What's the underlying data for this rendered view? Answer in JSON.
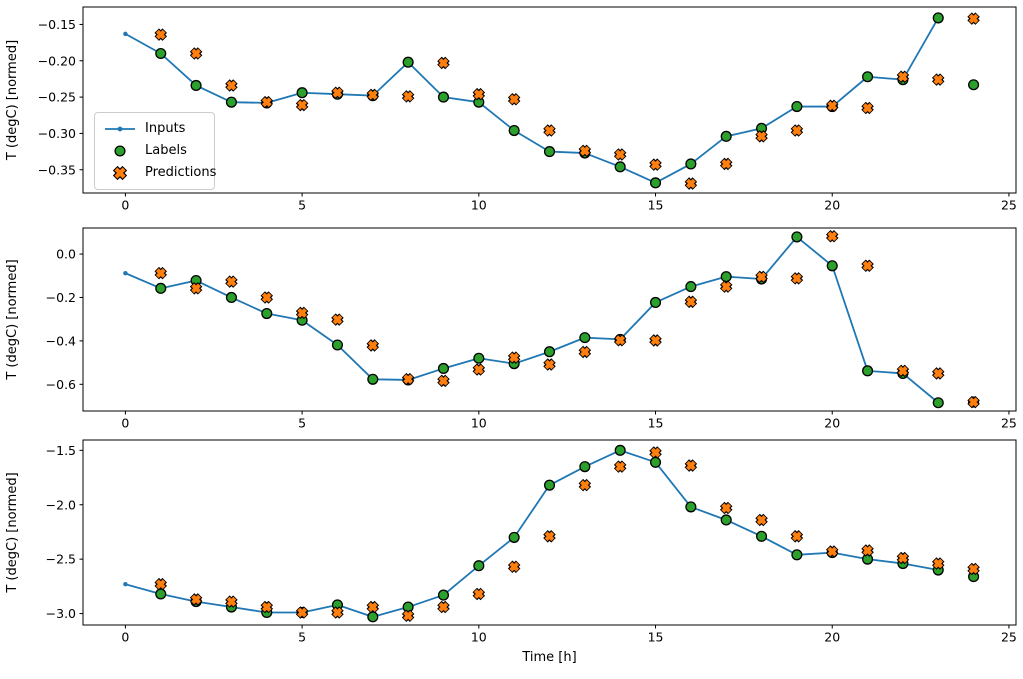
{
  "figure": {
    "background": "#ffffff",
    "xlabel": "Time [h]",
    "ylabel": "T (degC) [normed]"
  },
  "legend": {
    "items": [
      {
        "label": "Inputs",
        "marker": "line-dot",
        "color": "#1f77b4",
        "edge": "#1f77b4"
      },
      {
        "label": "Labels",
        "marker": "circle",
        "color": "#2ca02c",
        "edge": "#000000"
      },
      {
        "label": "Predictions",
        "marker": "X",
        "color": "#ff7f0e",
        "edge": "#000000"
      }
    ]
  },
  "chart_data": [
    {
      "type": "line",
      "title": "",
      "xlabel": "",
      "ylabel": "T (degC) [normed]",
      "xlim": [
        -1.2,
        25.2
      ],
      "ylim": [
        -0.382,
        -0.126
      ],
      "xticks": [
        0,
        5,
        10,
        15,
        20,
        25
      ],
      "xtick_labels": [
        "0",
        "5",
        "10",
        "15",
        "20",
        "25"
      ],
      "show_xtick_labels": true,
      "yticks": [
        -0.15,
        -0.2,
        -0.25,
        -0.3,
        -0.35
      ],
      "ytick_labels": [
        "−0.15",
        "−0.20",
        "−0.25",
        "−0.30",
        "−0.35"
      ],
      "legend_position": "center left",
      "series": [
        {
          "name": "Inputs",
          "kind": "line",
          "marker": "dot",
          "color": "#1f77b4",
          "edge": "#1f77b4",
          "x": [
            0,
            1,
            2,
            3,
            4,
            5,
            6,
            7,
            8,
            9,
            10,
            11,
            12,
            13,
            14,
            15,
            16,
            17,
            18,
            19,
            20,
            21,
            22,
            23
          ],
          "y": [
            -0.163,
            -0.19,
            -0.234,
            -0.257,
            -0.258,
            -0.244,
            -0.246,
            -0.248,
            -0.202,
            -0.25,
            -0.257,
            -0.296,
            -0.325,
            -0.327,
            -0.346,
            -0.368,
            -0.342,
            -0.304,
            -0.293,
            -0.263,
            -0.263,
            -0.222,
            -0.226,
            -0.141
          ]
        },
        {
          "name": "Labels",
          "kind": "scatter",
          "marker": "circle",
          "color": "#2ca02c",
          "edge": "#000000",
          "x": [
            1,
            2,
            3,
            4,
            5,
            6,
            7,
            8,
            9,
            10,
            11,
            12,
            13,
            14,
            15,
            16,
            17,
            18,
            19,
            20,
            21,
            22,
            23,
            24
          ],
          "y": [
            -0.19,
            -0.234,
            -0.257,
            -0.258,
            -0.244,
            -0.246,
            -0.248,
            -0.202,
            -0.25,
            -0.257,
            -0.296,
            -0.325,
            -0.327,
            -0.346,
            -0.368,
            -0.342,
            -0.304,
            -0.293,
            -0.263,
            -0.263,
            -0.222,
            -0.226,
            -0.141,
            -0.233
          ]
        },
        {
          "name": "Predictions",
          "kind": "scatter",
          "marker": "X",
          "color": "#ff7f0e",
          "edge": "#000000",
          "x": [
            1,
            2,
            3,
            4,
            5,
            6,
            7,
            8,
            9,
            10,
            11,
            12,
            13,
            14,
            15,
            16,
            17,
            18,
            19,
            20,
            21,
            22,
            23,
            24
          ],
          "y": [
            -0.164,
            -0.19,
            -0.234,
            -0.257,
            -0.261,
            -0.244,
            -0.247,
            -0.249,
            -0.203,
            -0.246,
            -0.253,
            -0.296,
            -0.324,
            -0.329,
            -0.343,
            -0.369,
            -0.342,
            -0.304,
            -0.296,
            -0.262,
            -0.265,
            -0.222,
            -0.226,
            -0.142
          ]
        }
      ]
    },
    {
      "type": "line",
      "title": "",
      "xlabel": "",
      "ylabel": "T (degC) [normed]",
      "xlim": [
        -1.2,
        25.2
      ],
      "ylim": [
        -0.723,
        0.12
      ],
      "xticks": [
        0,
        5,
        10,
        15,
        20,
        25
      ],
      "xtick_labels": [
        "0",
        "5",
        "10",
        "15",
        "20",
        "25"
      ],
      "show_xtick_labels": true,
      "yticks": [
        0.0,
        -0.2,
        -0.4,
        -0.6
      ],
      "ytick_labels": [
        "0.0",
        "−0.2",
        "−0.4",
        "−0.6"
      ],
      "legend_position": "none",
      "series": [
        {
          "name": "Inputs",
          "kind": "line",
          "marker": "dot",
          "color": "#1f77b4",
          "edge": "#1f77b4",
          "x": [
            0,
            1,
            2,
            3,
            4,
            5,
            6,
            7,
            8,
            9,
            10,
            11,
            12,
            13,
            14,
            15,
            16,
            17,
            18,
            19,
            20,
            21,
            22,
            23
          ],
          "y": [
            -0.088,
            -0.158,
            -0.122,
            -0.2,
            -0.274,
            -0.305,
            -0.419,
            -0.577,
            -0.58,
            -0.527,
            -0.48,
            -0.505,
            -0.45,
            -0.385,
            -0.393,
            -0.223,
            -0.15,
            -0.104,
            -0.115,
            0.079,
            -0.054,
            -0.538,
            -0.55,
            -0.685
          ]
        },
        {
          "name": "Labels",
          "kind": "scatter",
          "marker": "circle",
          "color": "#2ca02c",
          "edge": "#000000",
          "x": [
            1,
            2,
            3,
            4,
            5,
            6,
            7,
            8,
            9,
            10,
            11,
            12,
            13,
            14,
            15,
            16,
            17,
            18,
            19,
            20,
            21,
            22,
            23,
            24
          ],
          "y": [
            -0.158,
            -0.122,
            -0.2,
            -0.274,
            -0.305,
            -0.419,
            -0.577,
            -0.58,
            -0.527,
            -0.48,
            -0.505,
            -0.45,
            -0.385,
            -0.393,
            -0.223,
            -0.15,
            -0.104,
            -0.115,
            0.079,
            -0.054,
            -0.538,
            -0.55,
            -0.685,
            -0.682
          ]
        },
        {
          "name": "Predictions",
          "kind": "scatter",
          "marker": "X",
          "color": "#ff7f0e",
          "edge": "#000000",
          "x": [
            1,
            2,
            3,
            4,
            5,
            6,
            7,
            8,
            9,
            10,
            11,
            12,
            13,
            14,
            15,
            16,
            17,
            18,
            19,
            20,
            21,
            22,
            23,
            24
          ],
          "y": [
            -0.088,
            -0.158,
            -0.127,
            -0.2,
            -0.271,
            -0.302,
            -0.421,
            -0.576,
            -0.584,
            -0.532,
            -0.477,
            -0.509,
            -0.451,
            -0.397,
            -0.398,
            -0.22,
            -0.15,
            -0.105,
            -0.112,
            0.082,
            -0.054,
            -0.538,
            -0.55,
            -0.682
          ]
        }
      ]
    },
    {
      "type": "line",
      "title": "",
      "xlabel": "Time [h]",
      "ylabel": "T (degC) [normed]",
      "xlim": [
        -1.2,
        25.2
      ],
      "ylim": [
        -3.105,
        -1.405
      ],
      "xticks": [
        0,
        5,
        10,
        15,
        20,
        25
      ],
      "xtick_labels": [
        "0",
        "5",
        "10",
        "15",
        "20",
        "25"
      ],
      "show_xtick_labels": true,
      "yticks": [
        -1.5,
        -2.0,
        -2.5,
        -3.0
      ],
      "ytick_labels": [
        "−1.5",
        "−2.0",
        "−2.5",
        "−3.0"
      ],
      "legend_position": "none",
      "series": [
        {
          "name": "Inputs",
          "kind": "line",
          "marker": "dot",
          "color": "#1f77b4",
          "edge": "#1f77b4",
          "x": [
            0,
            1,
            2,
            3,
            4,
            5,
            6,
            7,
            8,
            9,
            10,
            11,
            12,
            13,
            14,
            15,
            16,
            17,
            18,
            19,
            20,
            21,
            22,
            23
          ],
          "y": [
            -2.73,
            -2.82,
            -2.89,
            -2.94,
            -2.99,
            -2.99,
            -2.92,
            -3.03,
            -2.94,
            -2.83,
            -2.56,
            -2.3,
            -1.82,
            -1.65,
            -1.5,
            -1.61,
            -2.02,
            -2.14,
            -2.29,
            -2.46,
            -2.44,
            -2.5,
            -2.54,
            -2.6
          ]
        },
        {
          "name": "Labels",
          "kind": "scatter",
          "marker": "circle",
          "color": "#2ca02c",
          "edge": "#000000",
          "x": [
            1,
            2,
            3,
            4,
            5,
            6,
            7,
            8,
            9,
            10,
            11,
            12,
            13,
            14,
            15,
            16,
            17,
            18,
            19,
            20,
            21,
            22,
            23,
            24
          ],
          "y": [
            -2.82,
            -2.89,
            -2.94,
            -2.99,
            -2.99,
            -2.92,
            -3.03,
            -2.94,
            -2.83,
            -2.56,
            -2.3,
            -1.82,
            -1.65,
            -1.5,
            -1.61,
            -2.02,
            -2.14,
            -2.29,
            -2.46,
            -2.44,
            -2.5,
            -2.54,
            -2.6,
            -2.66
          ]
        },
        {
          "name": "Predictions",
          "kind": "scatter",
          "marker": "X",
          "color": "#ff7f0e",
          "edge": "#000000",
          "x": [
            1,
            2,
            3,
            4,
            5,
            6,
            7,
            8,
            9,
            10,
            11,
            12,
            13,
            14,
            15,
            16,
            17,
            18,
            19,
            20,
            21,
            22,
            23,
            24
          ],
          "y": [
            -2.73,
            -2.87,
            -2.89,
            -2.94,
            -2.99,
            -2.99,
            -2.94,
            -3.02,
            -2.94,
            -2.82,
            -2.57,
            -2.29,
            -1.82,
            -1.65,
            -1.52,
            -1.64,
            -2.03,
            -2.14,
            -2.29,
            -2.43,
            -2.42,
            -2.49,
            -2.54,
            -2.59
          ]
        }
      ]
    }
  ]
}
